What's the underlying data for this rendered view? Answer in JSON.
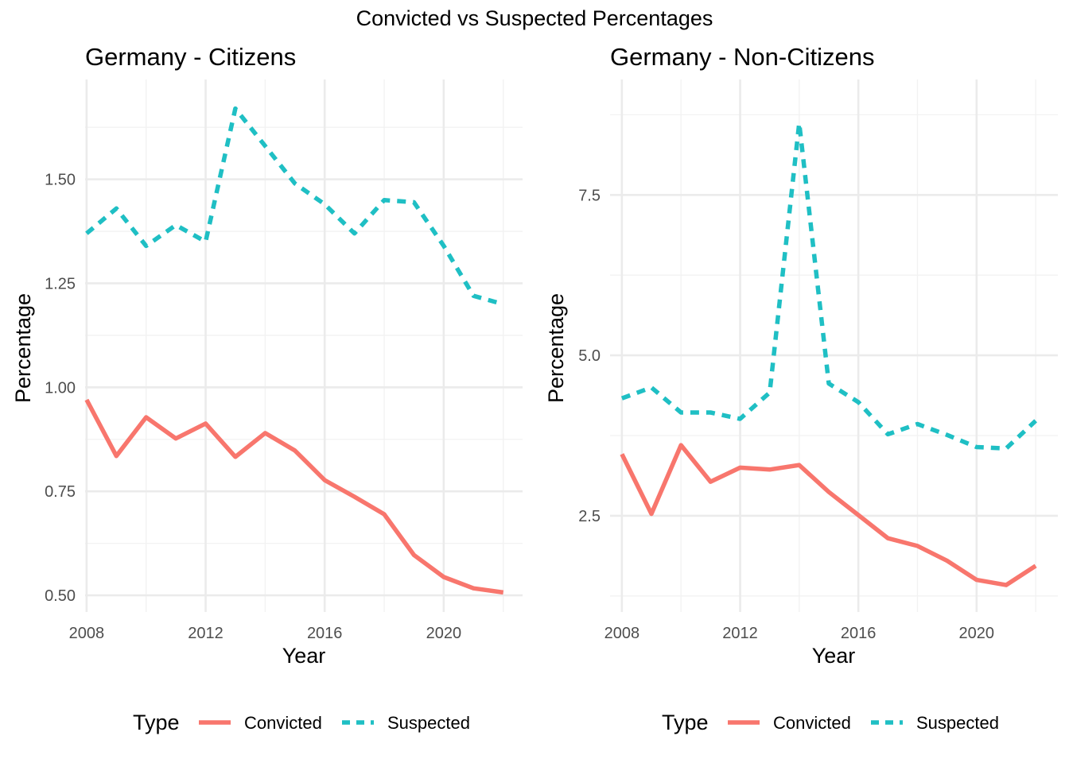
{
  "figure_title": "Convicted vs Suspected Percentages",
  "colors": {
    "convicted": "#F8766D",
    "suspected": "#1FBFC4",
    "grid_major": "#EBEBEB",
    "grid_minor": "#F2F2F2",
    "text": "#000000",
    "tick_text": "#4D4D4D"
  },
  "chart_data": [
    {
      "type": "line",
      "title": "Germany - Citizens",
      "xlabel": "Year",
      "ylabel": "Percentage",
      "x": [
        2008,
        2009,
        2010,
        2011,
        2012,
        2013,
        2014,
        2015,
        2016,
        2017,
        2018,
        2019,
        2020,
        2021,
        2022
      ],
      "xticks": [
        2008,
        2012,
        2016,
        2020
      ],
      "xtick_labels": [
        "2008",
        "2012",
        "2016",
        "2020"
      ],
      "yticks": [
        0.5,
        0.75,
        1.0,
        1.25,
        1.5
      ],
      "ytick_labels": [
        "0.50",
        "0.75",
        "1.00",
        "1.25",
        "1.50"
      ],
      "xlim": [
        2007.95,
        2022.65
      ],
      "ylim": [
        0.46,
        1.74
      ],
      "grid": true,
      "series": [
        {
          "name": "Convicted",
          "linetype": "solid",
          "values": [
            0.97,
            0.835,
            0.928,
            0.877,
            0.913,
            0.833,
            0.89,
            0.848,
            0.777,
            0.737,
            0.695,
            0.597,
            0.544,
            0.517,
            0.507
          ]
        },
        {
          "name": "Suspected",
          "linetype": "dashed",
          "values": [
            1.37,
            1.43,
            1.34,
            1.39,
            1.35,
            1.67,
            1.58,
            1.49,
            1.44,
            1.37,
            1.45,
            1.445,
            1.34,
            1.22,
            1.2
          ]
        }
      ],
      "legend": {
        "title": "Type",
        "position": "bottom",
        "entries": [
          "Convicted",
          "Suspected"
        ]
      }
    },
    {
      "type": "line",
      "title": "Germany - Non-Citizens",
      "xlabel": "Year",
      "ylabel": "Percentage",
      "x": [
        2008,
        2009,
        2010,
        2011,
        2012,
        2013,
        2014,
        2015,
        2016,
        2017,
        2018,
        2019,
        2020,
        2021,
        2022
      ],
      "xticks": [
        2008,
        2012,
        2016,
        2020
      ],
      "xtick_labels": [
        "2008",
        "2012",
        "2016",
        "2020"
      ],
      "yticks": [
        2.5,
        5.0,
        7.5
      ],
      "ytick_labels": [
        "2.5",
        "5.0",
        "7.5"
      ],
      "xlim": [
        2007.6,
        2022.75
      ],
      "ylim": [
        1.0,
        9.3
      ],
      "grid": true,
      "series": [
        {
          "name": "Convicted",
          "linetype": "solid",
          "values": [
            3.46,
            2.53,
            3.6,
            3.03,
            3.25,
            3.22,
            3.29,
            2.87,
            2.51,
            2.15,
            2.03,
            1.8,
            1.5,
            1.42,
            1.72
          ]
        },
        {
          "name": "Suspected",
          "linetype": "dashed",
          "values": [
            4.33,
            4.5,
            4.11,
            4.11,
            4.01,
            4.42,
            8.62,
            4.56,
            4.27,
            3.77,
            3.93,
            3.76,
            3.57,
            3.55,
            3.98
          ]
        }
      ],
      "legend": {
        "title": "Type",
        "position": "bottom",
        "entries": [
          "Convicted",
          "Suspected"
        ]
      }
    }
  ]
}
